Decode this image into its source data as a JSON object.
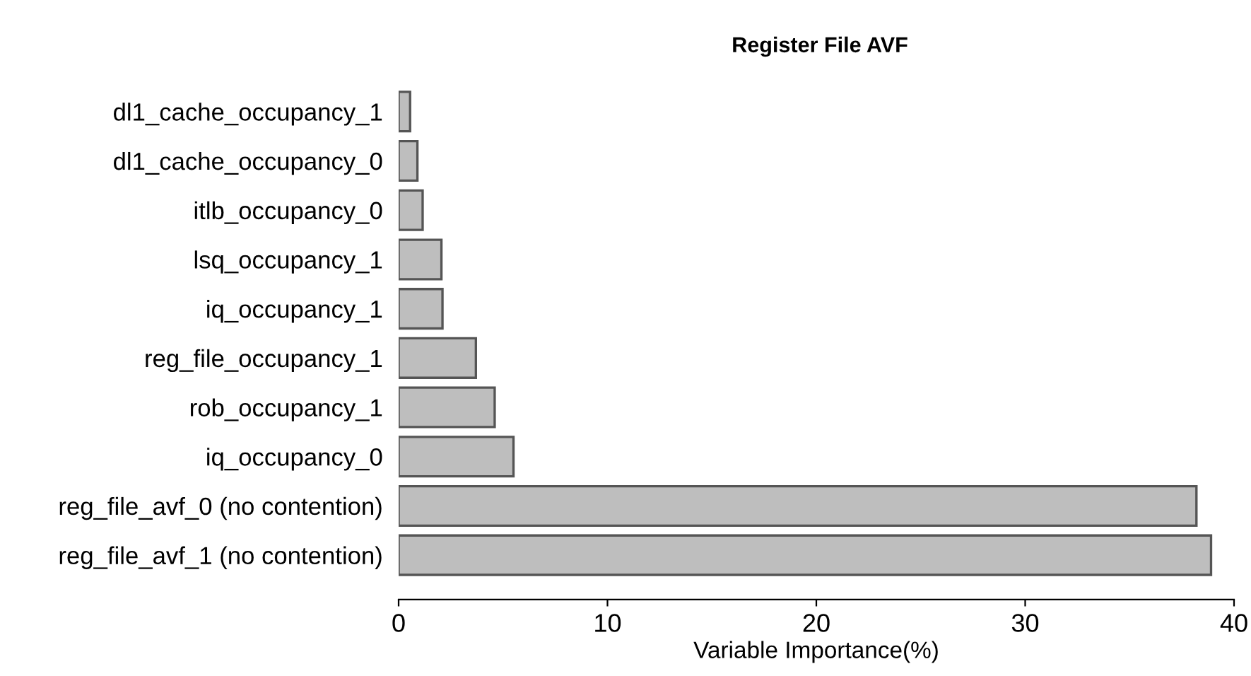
{
  "chart_data": {
    "type": "bar",
    "orientation": "horizontal",
    "title": "Register File AVF",
    "xlabel": "Variable Importance(%)",
    "categories": [
      "dl1_cache_occupancy_1",
      "dl1_cache_occupancy_0",
      "itlb_occupancy_0",
      "lsq_occupancy_1",
      "iq_occupancy_1",
      "reg_file_occupancy_1",
      "rob_occupancy_1",
      "iq_occupancy_0",
      "reg_file_avf_0 (no contention)",
      "reg_file_avf_1 (no contention)"
    ],
    "values": [
      0.55,
      0.9,
      1.15,
      2.05,
      2.1,
      3.7,
      4.6,
      5.5,
      38.2,
      38.9
    ],
    "color": "#bebebe",
    "xlim": [
      0,
      40
    ],
    "xticks": [
      0,
      10,
      20,
      30,
      40
    ],
    "grid": false,
    "legend": false
  }
}
